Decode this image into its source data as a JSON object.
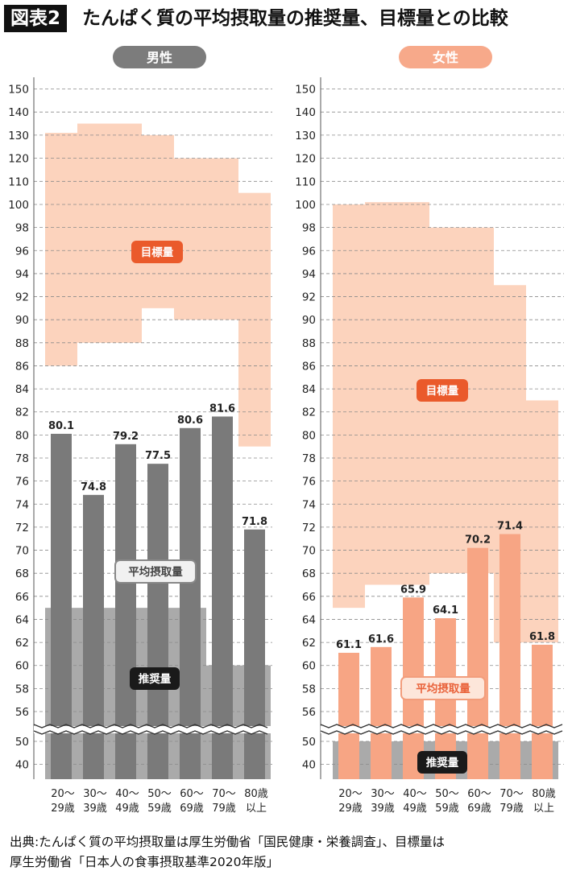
{
  "figure": {
    "label": "図表2",
    "title": "たんぱく質の平均摂取量の推奨量、目標量との比較",
    "source_line1": "出典:たんぱく質の平均摂取量は厚生労働省「国民健康・栄養調査」、目標量は",
    "source_line2": "厚生労働省「日本人の食事摂取基準2020年版」"
  },
  "chart_data": [
    {
      "type": "bar",
      "title": "男性",
      "categories": [
        [
          "20〜",
          "29歳"
        ],
        [
          "30〜",
          "39歳"
        ],
        [
          "40〜",
          "49歳"
        ],
        [
          "50〜",
          "59歳"
        ],
        [
          "60〜",
          "69歳"
        ],
        [
          "70〜",
          "79歳"
        ],
        [
          "80歳",
          "以上"
        ]
      ],
      "series": [
        {
          "name": "平均摂取量",
          "values": [
            80.1,
            74.8,
            79.2,
            77.5,
            80.6,
            81.6,
            71.8
          ]
        }
      ],
      "target_range": {
        "name": "目標量",
        "low": [
          86,
          88,
          88,
          91,
          90,
          90,
          79
        ],
        "high": [
          131,
          135,
          135,
          130,
          120,
          120,
          105
        ]
      },
      "recommended": {
        "name": "推奨量",
        "values": [
          65,
          65,
          65,
          65,
          65,
          60,
          60
        ]
      },
      "y_ticks": [
        40,
        50,
        56,
        58,
        60,
        62,
        64,
        66,
        68,
        70,
        72,
        74,
        76,
        78,
        80,
        82,
        84,
        86,
        88,
        90,
        92,
        94,
        96,
        98,
        100,
        110,
        120,
        130,
        140,
        150
      ],
      "axis_break": "52-55",
      "title_color": "#7c7c7c",
      "bar_color": "#7a7a7a",
      "target_color": "#fcd3bd",
      "recommended_color": "#9b9b9b"
    },
    {
      "type": "bar",
      "title": "女性",
      "categories": [
        [
          "20〜",
          "29歳"
        ],
        [
          "30〜",
          "39歳"
        ],
        [
          "40〜",
          "49歳"
        ],
        [
          "50〜",
          "59歳"
        ],
        [
          "60〜",
          "69歳"
        ],
        [
          "70〜",
          "79歳"
        ],
        [
          "80歳",
          "以上"
        ]
      ],
      "series": [
        {
          "name": "平均摂取量",
          "values": [
            61.1,
            61.6,
            65.9,
            64.1,
            70.2,
            71.4,
            61.8
          ]
        }
      ],
      "target_range": {
        "name": "目標量",
        "low": [
          65,
          67,
          67,
          68,
          68,
          62,
          62
        ],
        "high": [
          100,
          101,
          101,
          98,
          98,
          93,
          83
        ]
      },
      "recommended": {
        "name": "推奨量",
        "values": [
          50,
          50,
          50,
          50,
          50,
          50,
          50
        ]
      },
      "y_ticks": [
        40,
        50,
        56,
        58,
        60,
        62,
        64,
        66,
        68,
        70,
        72,
        74,
        76,
        78,
        80,
        82,
        84,
        86,
        88,
        90,
        92,
        94,
        96,
        98,
        100,
        110,
        120,
        130,
        140,
        150
      ],
      "axis_break": "52-55",
      "title_color": "#f7a98a",
      "bar_color": "#f7a584",
      "target_color": "#fcd3bd",
      "recommended_color": "#9b9b9b"
    }
  ]
}
